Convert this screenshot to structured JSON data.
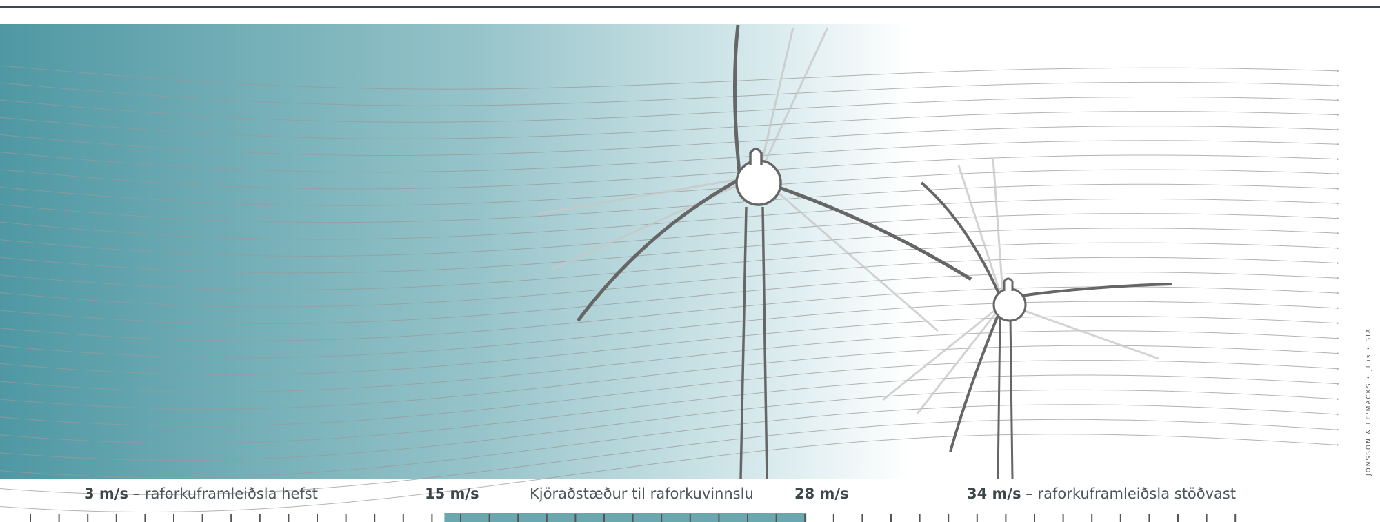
{
  "labels": {
    "start_speed": "3 m/s",
    "start_text": " – raforkuframleiðsla hefst",
    "optimal_start": "15 m/s",
    "optimal_text": "Kjöraðstæður til raforkuvinnslu",
    "optimal_end": "28 m/s",
    "stop_speed": "34 m/s",
    "stop_text": " – raforkuframleiðsla stöðvast"
  },
  "credit": "JÓNSSON & LE'MACKS • jl.is • SIA",
  "colors": {
    "teal": "#4f98a3",
    "band": "#6aa7ae",
    "turbine": "#666666",
    "streamline": "#9a9a9a",
    "tick": "#555555"
  },
  "scale": {
    "tick_count": 43,
    "band_start_tick": 14,
    "band_end_tick": 27
  }
}
